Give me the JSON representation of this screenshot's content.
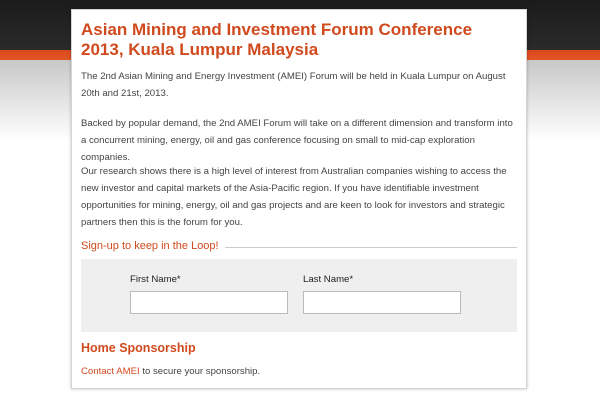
{
  "header": {
    "title": "Asian Mining and Investment Forum Conference 2013, Kuala Lumpur Malaysia"
  },
  "paragraphs": [
    "The 2nd Asian Mining and Energy Investment (AMEI) Forum will be held in Kuala Lumpur on August 20th and 21st, 2013.",
    "Backed by popular demand, the 2nd AMEI Forum will take on a different dimension and transform into a concurrent mining, energy, oil and gas conference focusing on small to mid-cap exploration companies.",
    "Our research shows there is a high level of interest from Australian companies wishing to access the new investor and capital markets of the Asia-Pacific region. If you have identifiable investment opportunities for mining, energy, oil and gas projects and are keen to look for investors and strategic partners then this is the forum for you."
  ],
  "signup": {
    "heading": "Sign-up to keep in the Loop!",
    "fields": [
      "First Name*",
      "Last Name*"
    ]
  },
  "sponsorship": {
    "heading": "Home Sponsorship",
    "link": "Contact AMEI",
    "text": "to secure your sponsorship."
  }
}
